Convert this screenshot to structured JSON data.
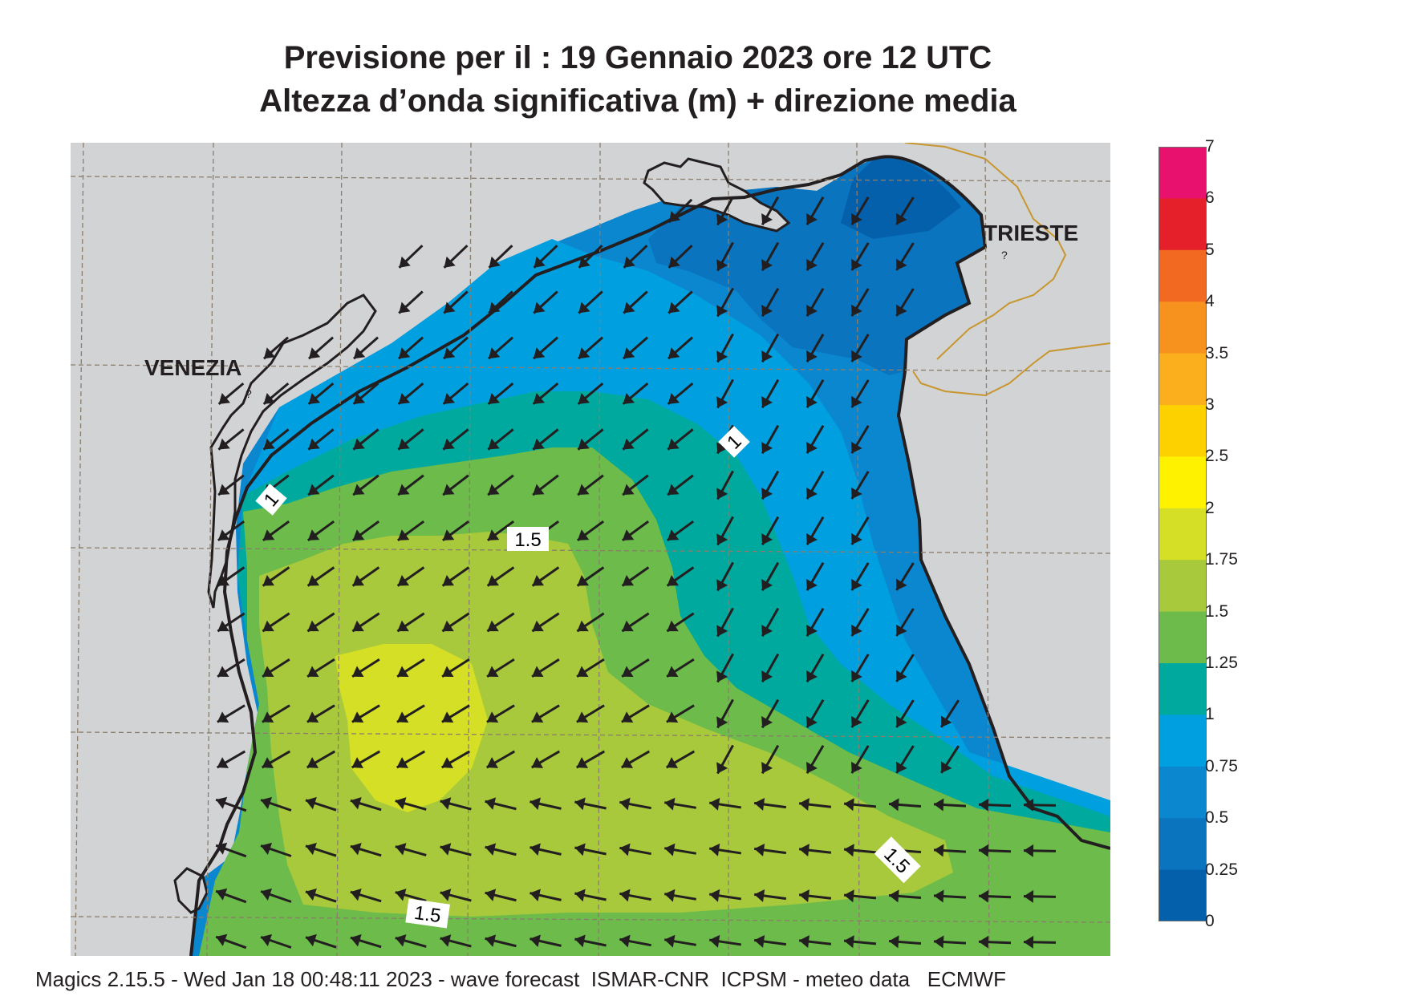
{
  "title_line1": "Previsione per il  :  19  Gennaio  2023   ore 12 UTC",
  "title_line2": "Altezza d’onda significativa (m) + direzione media",
  "cities": {
    "venezia": "VENEZIA",
    "trieste": "TRIESTE"
  },
  "contour_labels": {
    "c1a": "1",
    "c1b": "1",
    "c15a": "1.5",
    "c15b": "1.5",
    "c15c": "1.5"
  },
  "colorbar": {
    "labels": [
      "7",
      "6",
      "5",
      "4",
      "3.5",
      "3",
      "2.5",
      "2",
      "1.75",
      "1.5",
      "1.25",
      "1",
      "0.75",
      "0.5",
      "0.25",
      "0"
    ],
    "colors": [
      "#e8126e",
      "#e6202a",
      "#f26a22",
      "#f7921e",
      "#fbaf1c",
      "#fdd000",
      "#fff200",
      "#d4df26",
      "#a7c93b",
      "#6cbb4b",
      "#00a99d",
      "#00a0e0",
      "#0b87cf",
      "#0a74bf",
      "#0560ac"
    ]
  },
  "colors": {
    "land": "#d2d3d5",
    "border": "#c8962e",
    "coast": "#231f20"
  },
  "footer": "Magics 2.15.5 - Wed Jan 18 00:48:11 2023 - wave forecast  ISMAR-CNR  ICPSM - meteo data   ECMWF"
}
